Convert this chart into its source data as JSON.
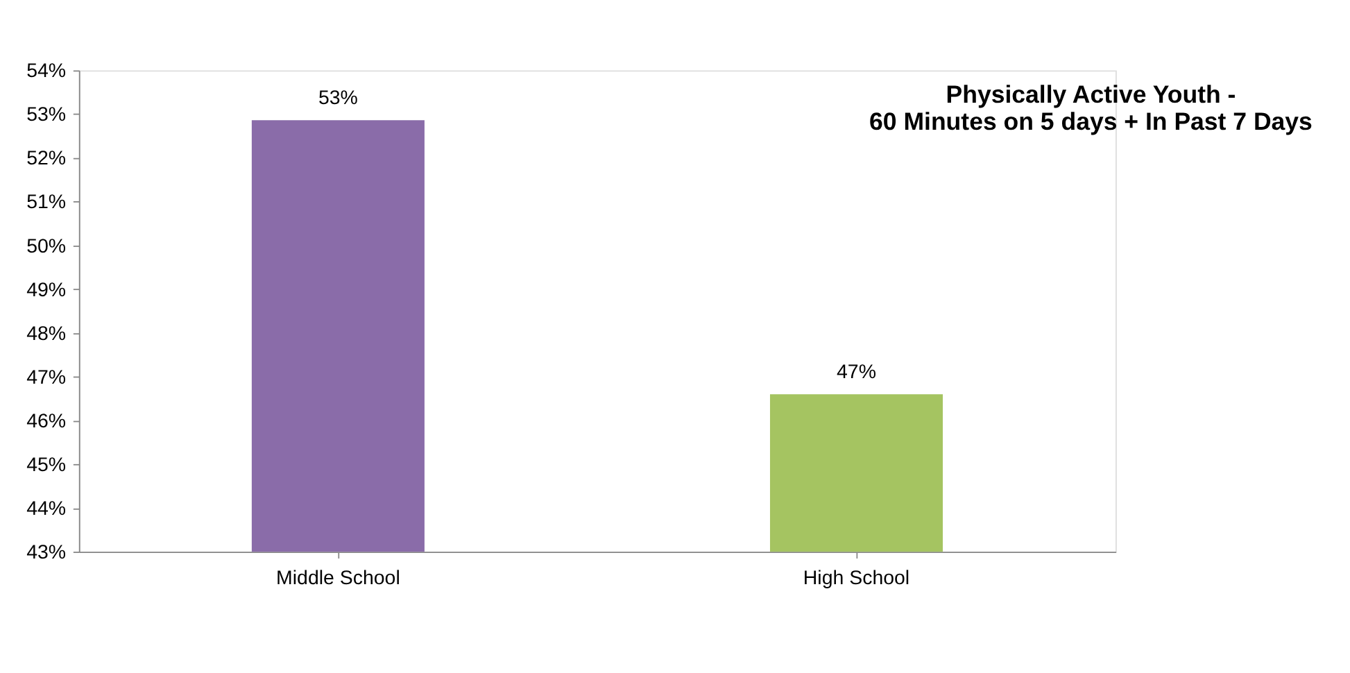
{
  "chart_data": {
    "type": "bar",
    "title": [
      "Physically Active Youth -",
      "60 Minutes on 5 days + In Past 7 Days"
    ],
    "categories": [
      "Middle School",
      "High School"
    ],
    "values": [
      52.86,
      46.6
    ],
    "colors": [
      "#8a6ca9",
      "#a5c461"
    ],
    "value_labels": [
      "53%",
      "47%"
    ],
    "ylim": [
      43,
      54
    ],
    "yticks": [
      {
        "value": 43,
        "label": "43%"
      },
      {
        "value": 44,
        "label": "44%"
      },
      {
        "value": 45,
        "label": "45%"
      },
      {
        "value": 46,
        "label": "46%"
      },
      {
        "value": 47,
        "label": "47%"
      },
      {
        "value": 48,
        "label": "48%"
      },
      {
        "value": 49,
        "label": "49%"
      },
      {
        "value": 50,
        "label": "50%"
      },
      {
        "value": 51,
        "label": "51%"
      },
      {
        "value": 52,
        "label": "52%"
      },
      {
        "value": 53,
        "label": "53%"
      },
      {
        "value": 54,
        "label": "54%"
      }
    ],
    "grid": false
  }
}
